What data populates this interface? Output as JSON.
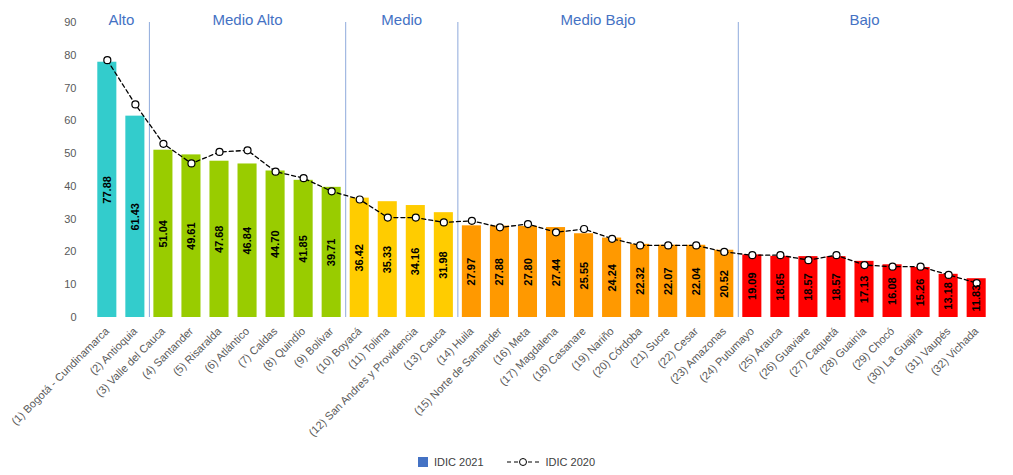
{
  "chart_data": {
    "type": "bar",
    "categories": [
      "(1) Bogotá - Cundinamarca",
      "(2) Antioquia",
      "(3) Valle del Cauca",
      "(4) Santander",
      "(5) Risaralda",
      "(6) Atlántico",
      "(7) Caldas",
      "(8) Quindío",
      "(9) Bolívar",
      "(10) Boyacá",
      "(11) Tolima",
      "(12) San Andres y Providencia",
      "(13) Cauca",
      "(14) Huila",
      "(15) Norte de Santander",
      "(16) Meta",
      "(17) Magdalena",
      "(18) Casanare",
      "(19) Nariño",
      "(20) Córdoba",
      "(21) Sucre",
      "(22) Cesar",
      "(23) Amazonas",
      "(24) Putumayo",
      "(25) Arauca",
      "(26) Guaviare",
      "(27) Caquetá",
      "(28) Guainía",
      "(29) Chocó",
      "(30) La Guajira",
      "(31) Vaupés",
      "(32) Vichada"
    ],
    "series": [
      {
        "name": "IDIC 2021",
        "type": "bar",
        "color": "#4472c4",
        "values": [
          77.88,
          61.43,
          51.04,
          49.61,
          47.68,
          46.84,
          44.7,
          41.85,
          39.71,
          36.42,
          35.33,
          34.16,
          31.98,
          27.97,
          27.88,
          27.8,
          27.44,
          25.55,
          24.24,
          22.32,
          22.07,
          22.04,
          20.52,
          19.09,
          18.65,
          18.57,
          18.57,
          17.13,
          16.08,
          15.26,
          13.18,
          11.83
        ],
        "value_labels": [
          "77.88",
          "61.43",
          "51.04",
          "49.61",
          "47.68",
          "46.84",
          "44.70",
          "41.85",
          "39.71",
          "36.42",
          "35.33",
          "34.16",
          "31.98",
          "27.97",
          "27.88",
          "27.80",
          "27.44",
          "25.55",
          "24.24",
          "22.32",
          "22.07",
          "22.04",
          "20.52",
          "19.09",
          "18.65",
          "18.57",
          "18.57",
          "17.13",
          "16.08",
          "15.26",
          "13.18",
          "11.83"
        ],
        "colors": [
          "#33cccc",
          "#33cccc",
          "#99cc00",
          "#99cc00",
          "#99cc00",
          "#99cc00",
          "#99cc00",
          "#99cc00",
          "#99cc00",
          "#ffcc00",
          "#ffcc00",
          "#ffcc00",
          "#ffcc00",
          "#ff9900",
          "#ff9900",
          "#ff9900",
          "#ff9900",
          "#ff9900",
          "#ff9900",
          "#ff9900",
          "#ff9900",
          "#ff9900",
          "#ff9900",
          "#ff0000",
          "#ff0000",
          "#ff0000",
          "#ff0000",
          "#ff0000",
          "#ff0000",
          "#ff0000",
          "#ff0000",
          "#ff0000"
        ],
        "data_labels": true
      },
      {
        "name": "IDIC 2020",
        "type": "line",
        "color": "#000000",
        "line_style": "dashed",
        "marker": "circle",
        "values": [
          78.5,
          65,
          53,
          47,
          50.5,
          51,
          44.5,
          42.5,
          38.5,
          36,
          30.5,
          30.5,
          29,
          29.5,
          27.5,
          28.5,
          26,
          27,
          24,
          22,
          22,
          22,
          20,
          19,
          19,
          17.5,
          19,
          16,
          15.5,
          15.5,
          13,
          10.5
        ]
      }
    ],
    "annotations": [
      {
        "text": "Alto",
        "from": "(1) Bogotá - Cundinamarca",
        "to": "(2) Antioquia"
      },
      {
        "text": "Medio Alto",
        "from": "(3) Valle del Cauca",
        "to": "(9) Bolívar"
      },
      {
        "text": "Medio",
        "from": "(10) Boyacá",
        "to": "(13) Cauca"
      },
      {
        "text": "Medio Bajo",
        "from": "(14) Huila",
        "to": "(23) Amazonas"
      },
      {
        "text": "Bajo",
        "from": "(24) Putumayo",
        "to": "(32) Vichada"
      }
    ],
    "ylim": [
      0,
      90
    ],
    "yticks": [
      0,
      10,
      20,
      30,
      40,
      50,
      60,
      70,
      80,
      90
    ],
    "grid": false,
    "legend": "bottom"
  }
}
